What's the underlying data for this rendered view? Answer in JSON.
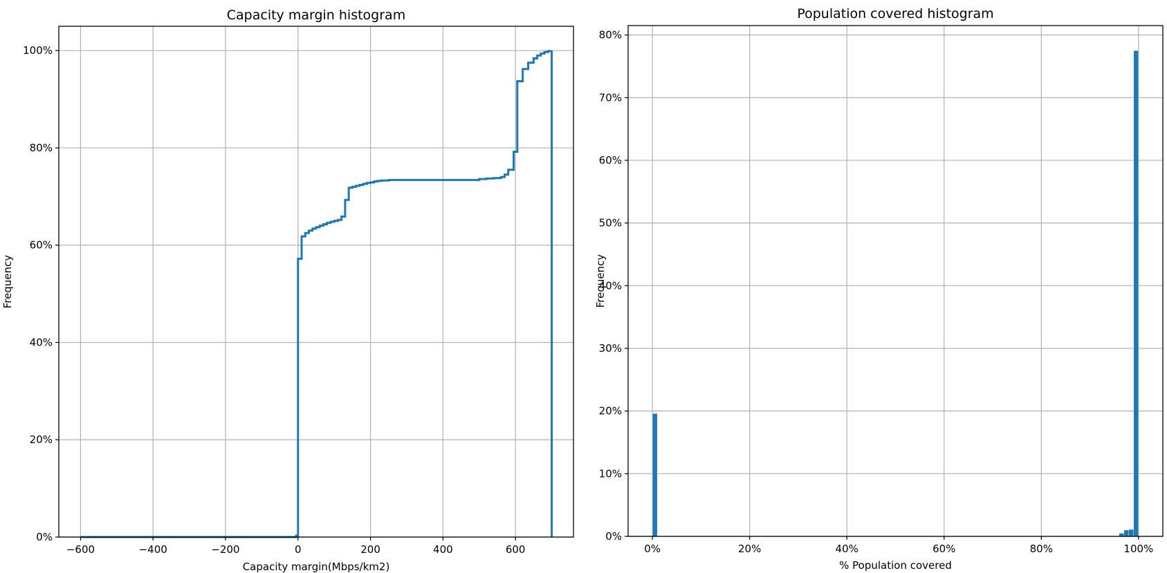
{
  "chart_data": [
    {
      "type": "line",
      "style": "step (cumulative histogram)",
      "title": "Capacity margin histogram",
      "xlabel": "Capacity margin(Mbps/km2)",
      "ylabel": "Frequency",
      "xlim": [
        -660,
        760
      ],
      "ylim": [
        0,
        1.05
      ],
      "xticks": [
        -600,
        -400,
        -200,
        0,
        200,
        400,
        600
      ],
      "xtick_labels": [
        "−600",
        "−400",
        "−200",
        "0",
        "200",
        "400",
        "600"
      ],
      "yticks": [
        0,
        0.2,
        0.4,
        0.6,
        0.8,
        1.0
      ],
      "ytick_labels": [
        "0%",
        "20%",
        "40%",
        "60%",
        "80%",
        "100%"
      ],
      "grid": true,
      "color": "#1f77b4",
      "series": [
        {
          "x": [
            -600,
            -20,
            -5,
            0,
            10,
            20,
            30,
            40,
            50,
            60,
            70,
            80,
            90,
            100,
            110,
            120,
            130,
            140,
            150,
            160,
            170,
            180,
            190,
            200,
            210,
            220,
            230,
            240,
            250,
            500,
            520,
            540,
            560,
            570,
            580,
            595,
            605,
            620,
            635,
            650,
            660,
            670,
            680,
            690,
            700,
            700
          ],
          "y": [
            0.0,
            0.0,
            0.003,
            0.572,
            0.618,
            0.625,
            0.63,
            0.634,
            0.637,
            0.64,
            0.643,
            0.646,
            0.648,
            0.65,
            0.652,
            0.659,
            0.693,
            0.718,
            0.72,
            0.722,
            0.724,
            0.726,
            0.728,
            0.729,
            0.731,
            0.732,
            0.733,
            0.733,
            0.734,
            0.736,
            0.737,
            0.738,
            0.74,
            0.745,
            0.755,
            0.792,
            0.937,
            0.962,
            0.975,
            0.984,
            0.99,
            0.994,
            0.997,
            0.999,
            1.0,
            0.0
          ]
        }
      ]
    },
    {
      "type": "bar",
      "style": "histogram",
      "title": "Population covered histogram",
      "xlabel": "% Population covered",
      "ylabel": "Frequency",
      "xlim": [
        -0.05,
        1.05
      ],
      "ylim": [
        0,
        0.815
      ],
      "xticks": [
        0,
        0.2,
        0.4,
        0.6,
        0.8,
        1.0
      ],
      "xtick_labels": [
        "0%",
        "20%",
        "40%",
        "60%",
        "80%",
        "100%"
      ],
      "yticks": [
        0,
        0.1,
        0.2,
        0.3,
        0.4,
        0.5,
        0.6,
        0.7,
        0.8
      ],
      "ytick_labels": [
        "0%",
        "10%",
        "20%",
        "30%",
        "40%",
        "50%",
        "60%",
        "70%",
        "80%"
      ],
      "grid": true,
      "color": "#1f77b4",
      "bin_width": 0.01,
      "bins": [
        {
          "x": 0.0,
          "value": 0.196
        },
        {
          "x": 0.96,
          "value": 0.005
        },
        {
          "x": 0.97,
          "value": 0.01
        },
        {
          "x": 0.98,
          "value": 0.011
        },
        {
          "x": 0.99,
          "value": 0.775
        }
      ]
    }
  ]
}
